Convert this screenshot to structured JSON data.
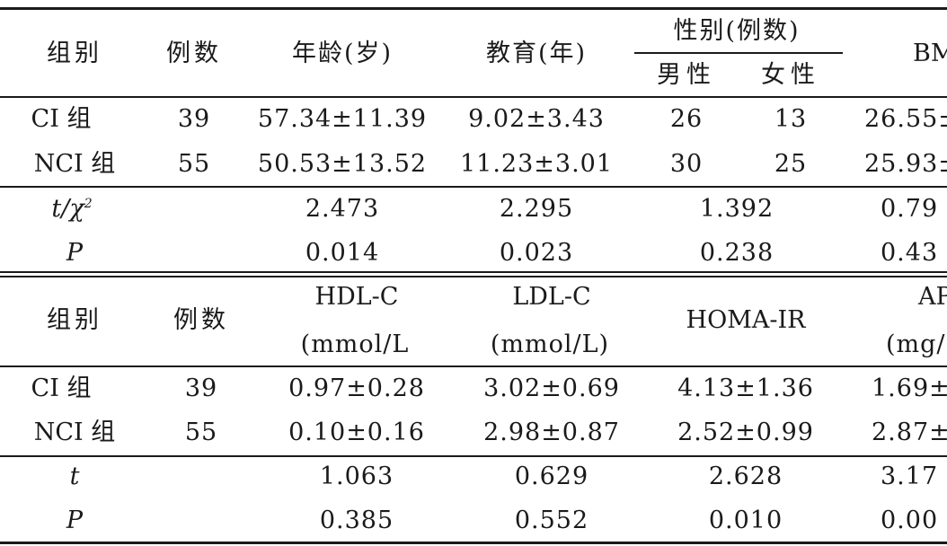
{
  "table1": {
    "headers": {
      "group": "组别",
      "count": "例数",
      "age": "年龄(岁)",
      "education": "教育(年)",
      "sex": "性别(例数)",
      "male": "男性",
      "female": "女性",
      "bmi": "BM"
    },
    "rows": [
      {
        "group": "CI 组",
        "count": "39",
        "age": "57.34±11.39",
        "education": "9.02±3.43",
        "male": "26",
        "female": "13",
        "bmi": "26.55±"
      },
      {
        "group": "NCI 组",
        "count": "55",
        "age": "50.53±13.52",
        "education": "11.23±3.01",
        "male": "30",
        "female": "25",
        "bmi": "25.93±"
      }
    ],
    "stats": [
      {
        "label": "t/χ",
        "sup": "2",
        "age": "2.473",
        "education": "2.295",
        "sex": "1.392",
        "bmi": "0.79"
      },
      {
        "label": "P",
        "sup": "",
        "age": "0.014",
        "education": "0.023",
        "sex": "0.238",
        "bmi": "0.43"
      }
    ]
  },
  "table2": {
    "headers": {
      "group": "组别",
      "count": "例数",
      "hdl": "HDL-C",
      "hdl_unit": "(mmol/L",
      "ldl": "LDL-C",
      "ldl_unit": "(mmol/L)",
      "homa": "HOMA-IR",
      "ap": "AP",
      "ap_unit": "(mg/"
    },
    "rows": [
      {
        "group": "CI 组",
        "count": "39",
        "hdl": "0.97±0.28",
        "ldl": "3.02±0.69",
        "homa": "4.13±1.36",
        "ap": "1.69±"
      },
      {
        "group": "NCI 组",
        "count": "55",
        "hdl": "0.10±0.16",
        "ldl": "2.98±0.87",
        "homa": "2.52±0.99",
        "ap": "2.87±"
      }
    ],
    "stats": [
      {
        "label": "t",
        "hdl": "1.063",
        "ldl": "0.629",
        "homa": "2.628",
        "ap": "3.17"
      },
      {
        "label": "P",
        "hdl": "0.385",
        "ldl": "0.552",
        "homa": "0.010",
        "ap": "0.00"
      }
    ]
  }
}
